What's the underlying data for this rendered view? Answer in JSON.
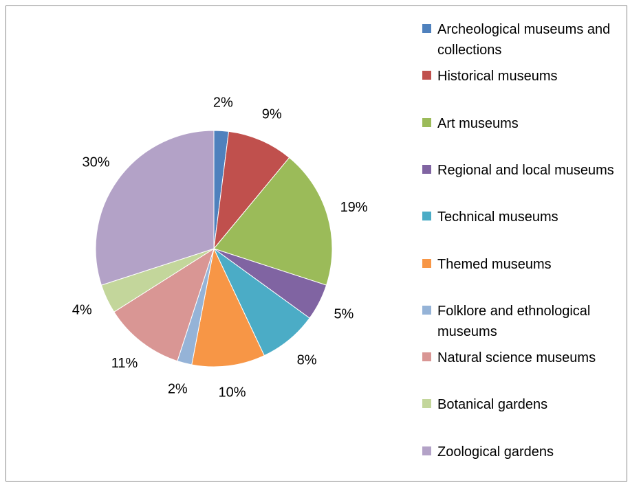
{
  "chart_data": {
    "type": "pie",
    "categories": [
      "Archeological museums and collections",
      "Historical museums",
      "Art museums",
      "Regional and local museums",
      "Technical museums",
      "Themed museums",
      "Folklore and ethnological museums",
      "Natural science museums",
      "Botanical gardens",
      "Zoological gardens"
    ],
    "values": [
      2,
      9,
      19,
      5,
      8,
      10,
      2,
      11,
      4,
      30
    ],
    "value_labels": [
      "2%",
      "9%",
      "19%",
      "5%",
      "8%",
      "10%",
      "2%",
      "11%",
      "4%",
      "30%"
    ],
    "colors": [
      "#4F81BD",
      "#C0504D",
      "#9BBB59",
      "#8064A2",
      "#4BACC6",
      "#F79646",
      "#95B3D7",
      "#D99694",
      "#C3D69B",
      "#B3A2C7"
    ],
    "legend": "right"
  }
}
